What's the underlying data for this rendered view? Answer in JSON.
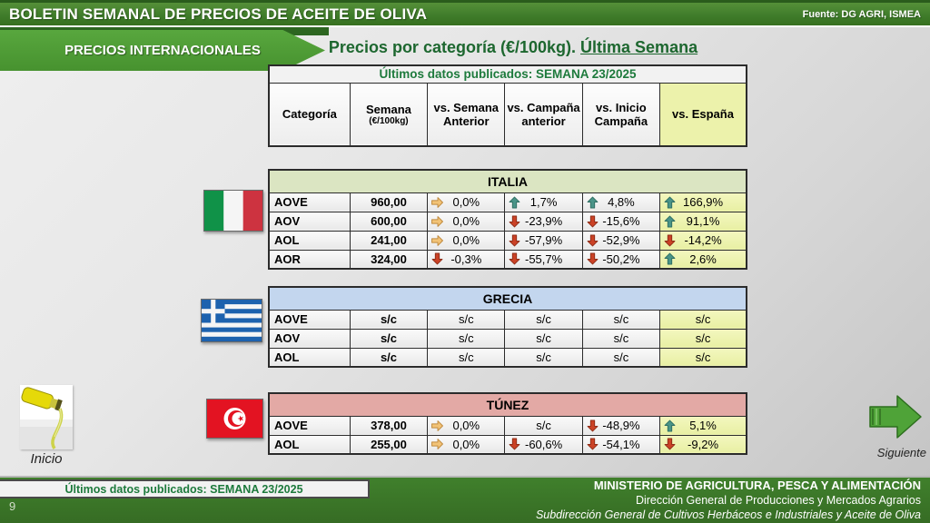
{
  "header": {
    "title": "BOLETIN SEMANAL DE PRECIOS DE ACEITE DE OLIVA",
    "source": "Fuente: DG AGRI, ISMEA"
  },
  "banner": {
    "label": "PRECIOS INTERNACIONALES"
  },
  "page_title": {
    "text": "Precios por categoría (€/100kg). ",
    "underlined": "Última Semana"
  },
  "table_header": {
    "published": "Últimos datos publicados: SEMANA 23/2025",
    "columns": [
      {
        "label": "Categoría"
      },
      {
        "label": "Semana",
        "sub": "(€/100kg)"
      },
      {
        "label": "vs. Semana Anterior"
      },
      {
        "label": "vs. Campaña anterior"
      },
      {
        "label": "vs. Inicio Campaña"
      },
      {
        "label": "vs. España"
      }
    ]
  },
  "countries": [
    {
      "id": "italia",
      "name": "ITALIA",
      "flag": "italy-flag-icon",
      "header_color": "#dbe5c2",
      "rows": [
        {
          "category": "AOVE",
          "price": "960,00",
          "cells": [
            {
              "arrow": "right",
              "value": "0,0%"
            },
            {
              "arrow": "up",
              "value": "1,7%"
            },
            {
              "arrow": "up",
              "value": "4,8%"
            },
            {
              "arrow": "up",
              "value": "166,9%"
            }
          ]
        },
        {
          "category": "AOV",
          "price": "600,00",
          "cells": [
            {
              "arrow": "right",
              "value": "0,0%"
            },
            {
              "arrow": "down",
              "value": "-23,9%"
            },
            {
              "arrow": "down",
              "value": "-15,6%"
            },
            {
              "arrow": "up",
              "value": "91,1%"
            }
          ]
        },
        {
          "category": "AOL",
          "price": "241,00",
          "cells": [
            {
              "arrow": "right",
              "value": "0,0%"
            },
            {
              "arrow": "down",
              "value": "-57,9%"
            },
            {
              "arrow": "down",
              "value": "-52,9%"
            },
            {
              "arrow": "down",
              "value": "-14,2%"
            }
          ]
        },
        {
          "category": "AOR",
          "price": "324,00",
          "cells": [
            {
              "arrow": "down",
              "value": "-0,3%"
            },
            {
              "arrow": "down",
              "value": "-55,7%"
            },
            {
              "arrow": "down",
              "value": "-50,2%"
            },
            {
              "arrow": "up",
              "value": "2,6%"
            }
          ]
        }
      ]
    },
    {
      "id": "grecia",
      "name": "GRECIA",
      "flag": "greece-flag-icon",
      "header_color": "#c3d6ee",
      "rows": [
        {
          "category": "AOVE",
          "price": "s/c",
          "cells": [
            {
              "arrow": null,
              "value": "s/c"
            },
            {
              "arrow": null,
              "value": "s/c"
            },
            {
              "arrow": null,
              "value": "s/c"
            },
            {
              "arrow": null,
              "value": "s/c"
            }
          ]
        },
        {
          "category": "AOV",
          "price": "s/c",
          "cells": [
            {
              "arrow": null,
              "value": "s/c"
            },
            {
              "arrow": null,
              "value": "s/c"
            },
            {
              "arrow": null,
              "value": "s/c"
            },
            {
              "arrow": null,
              "value": "s/c"
            }
          ]
        },
        {
          "category": "AOL",
          "price": "s/c",
          "cells": [
            {
              "arrow": null,
              "value": "s/c"
            },
            {
              "arrow": null,
              "value": "s/c"
            },
            {
              "arrow": null,
              "value": "s/c"
            },
            {
              "arrow": null,
              "value": "s/c"
            }
          ]
        }
      ]
    },
    {
      "id": "tunez",
      "name": "TÚNEZ",
      "flag": "tunisia-flag-icon",
      "header_color": "#e3a9a5",
      "rows": [
        {
          "category": "AOVE",
          "price": "378,00",
          "cells": [
            {
              "arrow": "right",
              "value": "0,0%"
            },
            {
              "arrow": null,
              "value": "s/c"
            },
            {
              "arrow": "down",
              "value": "-48,9%"
            },
            {
              "arrow": "up",
              "value": "5,1%"
            }
          ]
        },
        {
          "category": "AOL",
          "price": "255,00",
          "cells": [
            {
              "arrow": "right",
              "value": "0,0%"
            },
            {
              "arrow": "down",
              "value": "-60,6%"
            },
            {
              "arrow": "down",
              "value": "-54,1%"
            },
            {
              "arrow": "down",
              "value": "-9,2%"
            }
          ]
        }
      ]
    }
  ],
  "nav": {
    "inicio": "Inicio",
    "siguiente": "Siguiente"
  },
  "footer": {
    "published": "Últimos datos publicados: SEMANA 23/2025",
    "page_number": "9",
    "ministry": "MINISTERIO DE AGRICULTURA, PESCA Y ALIMENTACIÓN",
    "direction": "Dirección General de Producciones y Mercados Agrarios",
    "subdirection": "Subdirección General de Cultivos Herbáceos e Industriales y Aceite de Oliva"
  },
  "colors": {
    "accent_green": "#3e7b2a",
    "banner_green": "#4f9e38",
    "espana_yellow": "#ecf2ab",
    "italia_header": "#dbe5c2",
    "grecia_header": "#c3d6ee",
    "tunez_header": "#e3a9a5",
    "arrows": {
      "up": {
        "fill": "#4a9488",
        "stroke": "#2f6f63"
      },
      "down": {
        "fill": "#cb4226",
        "stroke": "#8f2d17"
      },
      "right": {
        "fill": "#f2c377",
        "stroke": "#c08a3e"
      }
    }
  }
}
